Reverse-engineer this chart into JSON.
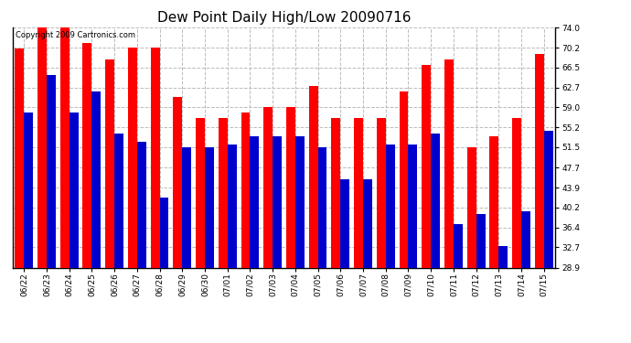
{
  "title": "Dew Point Daily High/Low 20090716",
  "copyright": "Copyright 2009 Cartronics.com",
  "dates": [
    "06/22",
    "06/23",
    "06/24",
    "06/25",
    "06/26",
    "06/27",
    "06/28",
    "06/29",
    "06/30",
    "07/01",
    "07/02",
    "07/03",
    "07/04",
    "07/05",
    "07/06",
    "07/07",
    "07/08",
    "07/09",
    "07/10",
    "07/11",
    "07/12",
    "07/13",
    "07/14",
    "07/15"
  ],
  "highs": [
    70.0,
    74.0,
    74.0,
    71.0,
    68.0,
    70.2,
    70.2,
    61.0,
    57.0,
    57.0,
    58.0,
    59.0,
    59.0,
    63.0,
    57.0,
    57.0,
    57.0,
    62.0,
    67.0,
    68.0,
    51.5,
    53.5,
    57.0,
    69.0
  ],
  "lows": [
    58.0,
    65.0,
    58.0,
    62.0,
    54.0,
    52.5,
    42.0,
    51.5,
    51.5,
    52.0,
    53.5,
    53.5,
    53.5,
    51.5,
    45.5,
    45.5,
    52.0,
    52.0,
    54.0,
    37.0,
    39.0,
    33.0,
    39.5,
    54.5
  ],
  "high_color": "#FF0000",
  "low_color": "#0000CC",
  "bg_color": "#FFFFFF",
  "plot_bg_color": "#FFFFFF",
  "grid_color": "#BBBBBB",
  "yticks": [
    28.9,
    32.7,
    36.4,
    40.2,
    43.9,
    47.7,
    51.5,
    55.2,
    59.0,
    62.7,
    66.5,
    70.2,
    74.0
  ],
  "ymin": 28.9,
  "ymax": 74.0,
  "bar_width": 0.4,
  "title_fontsize": 11,
  "tick_fontsize": 6.5,
  "copyright_fontsize": 6
}
